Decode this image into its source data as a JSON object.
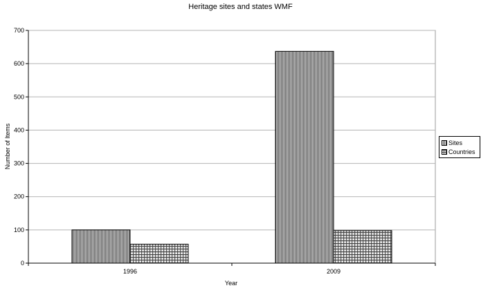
{
  "chart_data": {
    "type": "bar",
    "title": "Heritage sites and states WMF",
    "xlabel": "Year",
    "ylabel": "Number of Items",
    "categories": [
      "1996",
      "2009"
    ],
    "series": [
      {
        "name": "Sites",
        "values": [
          100,
          637
        ]
      },
      {
        "name": "Countries",
        "values": [
          57,
          98
        ]
      }
    ],
    "ylim": [
      0,
      700
    ],
    "yticks": [
      0,
      100,
      200,
      300,
      400,
      500,
      600,
      700
    ],
    "grid": true,
    "legend_position": "right",
    "colors": {
      "gridline": "#b3b3b3",
      "bar_border": "#000000",
      "pattern_dark": "#555555",
      "pattern_light": "#f4f4f4"
    }
  }
}
